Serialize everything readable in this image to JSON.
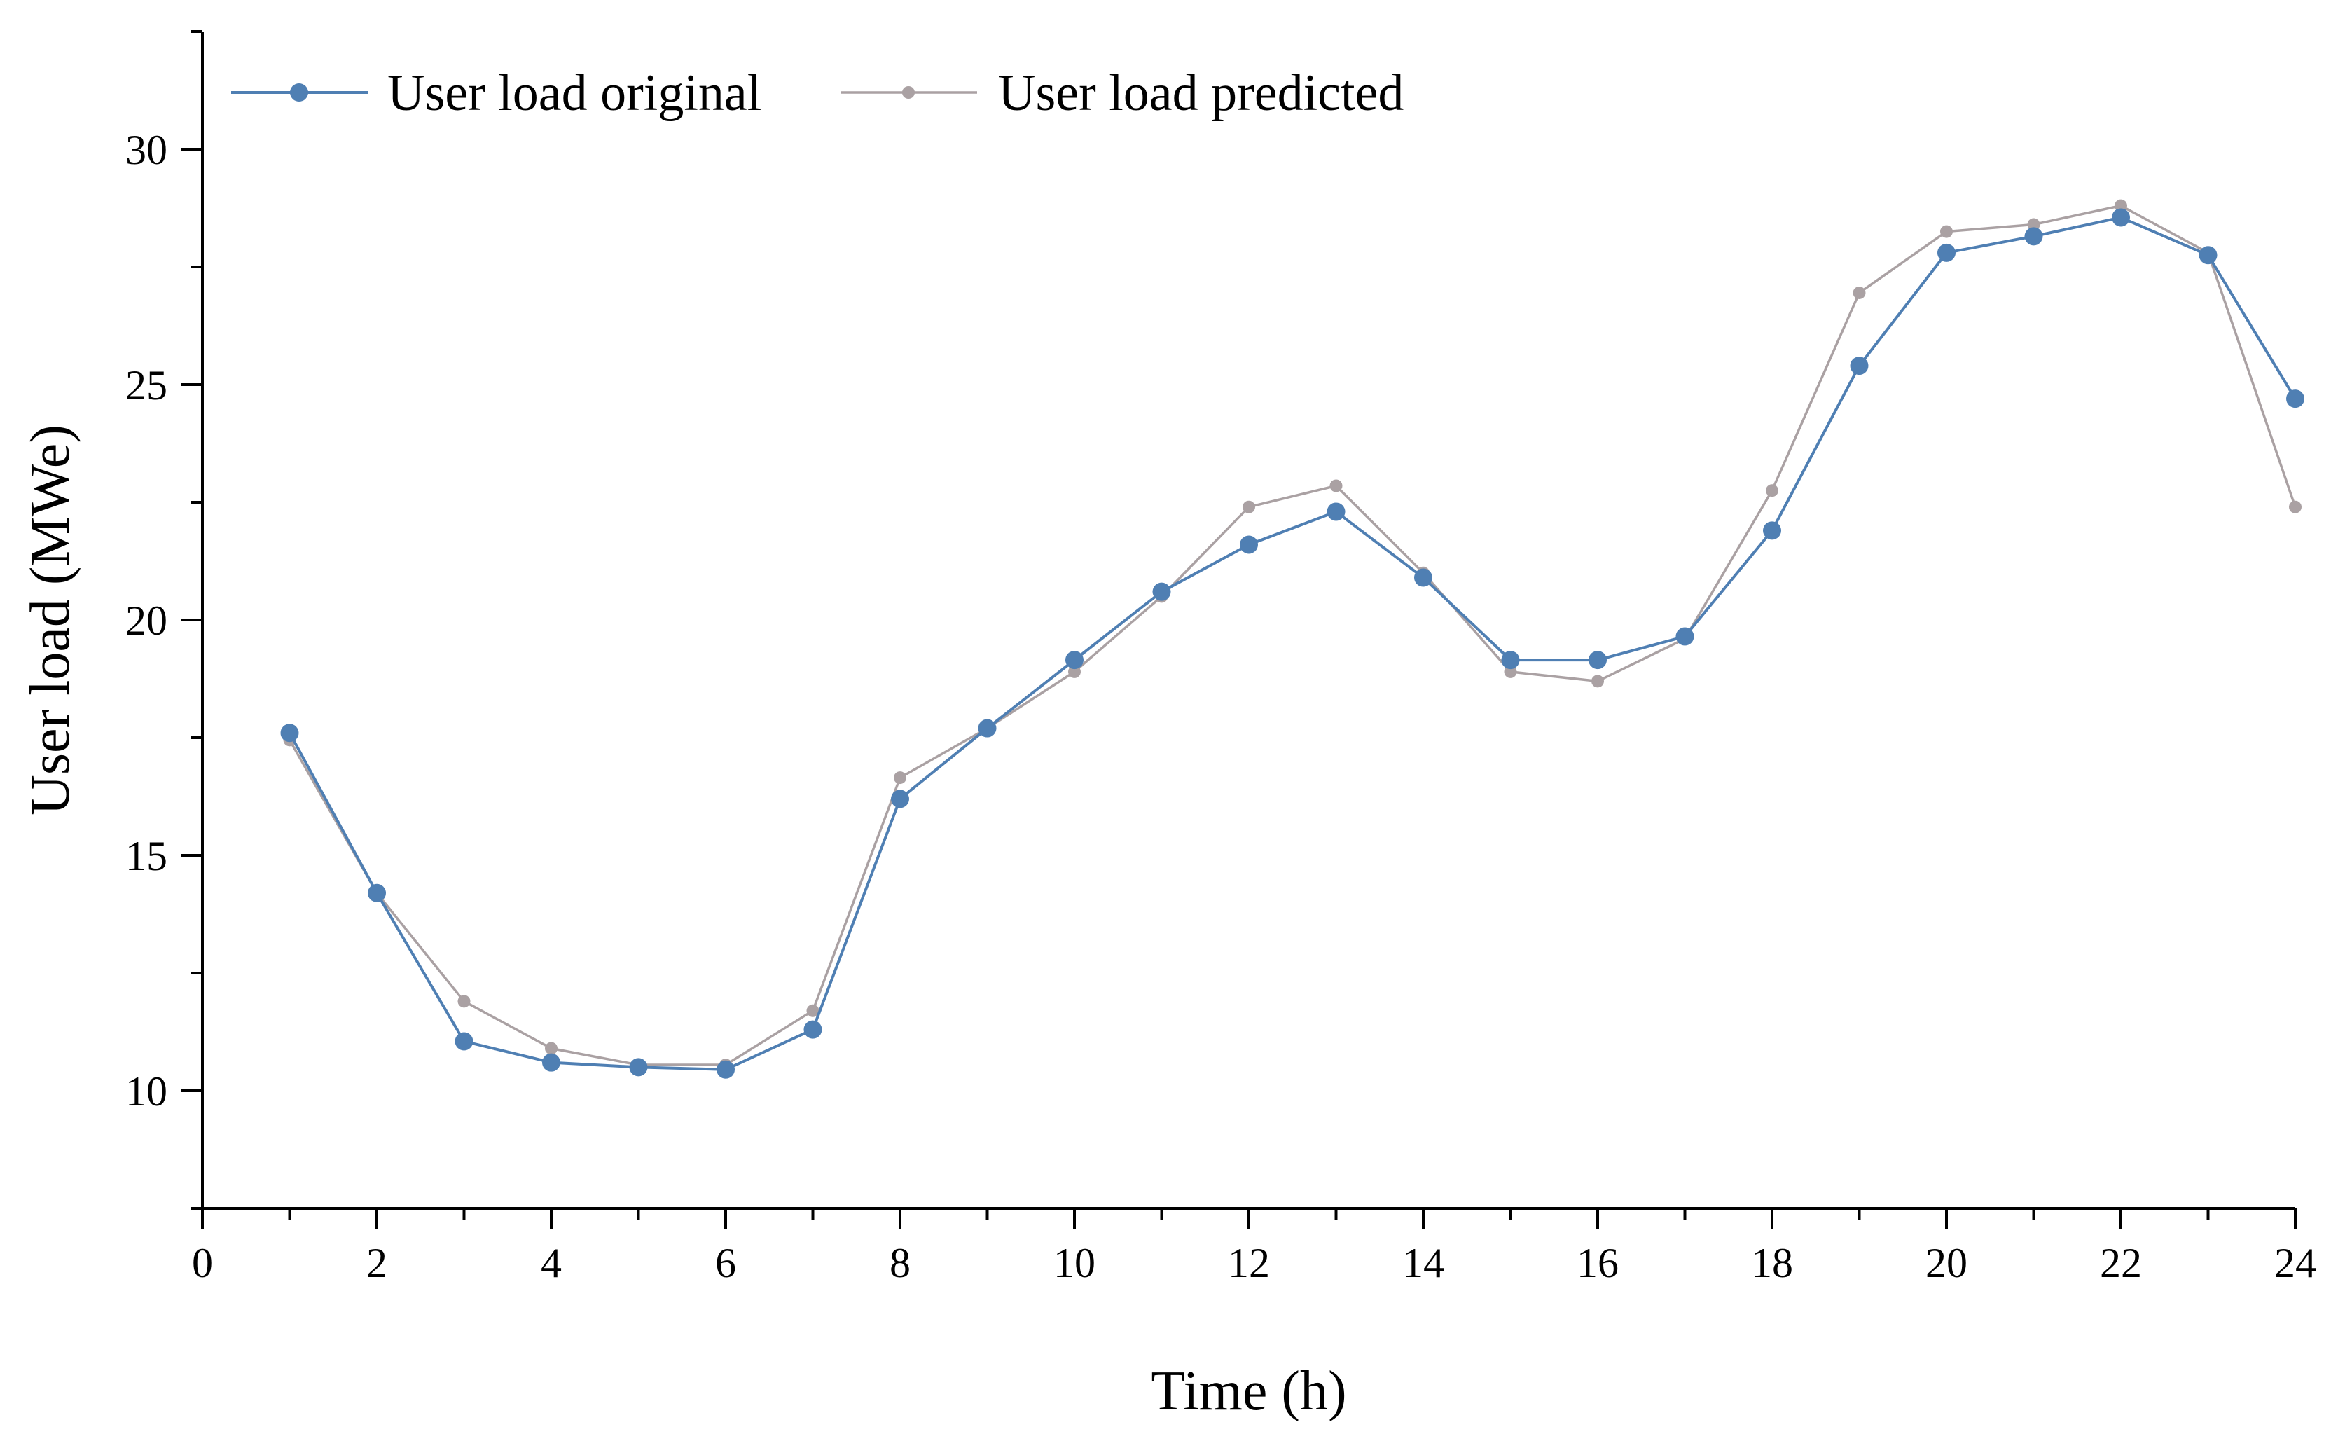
{
  "chart_data": {
    "type": "line",
    "title": "",
    "xlabel": "Time (h)",
    "ylabel": "User load (MWe)",
    "xlim": [
      0,
      24
    ],
    "ylim": [
      7.5,
      32.5
    ],
    "x_ticks": [
      0,
      2,
      4,
      6,
      8,
      10,
      12,
      14,
      16,
      18,
      20,
      22,
      24
    ],
    "x_tick_labels": [
      "0",
      "2",
      "4",
      "6",
      "8",
      "10",
      "12",
      "14",
      "16",
      "18",
      "20",
      "22",
      "24"
    ],
    "y_ticks": [
      10,
      15,
      20,
      25,
      30
    ],
    "y_tick_labels": [
      "10",
      "15",
      "20",
      "25",
      "30"
    ],
    "y_minor_ticks": [
      7.5,
      12.5,
      17.5,
      22.5,
      27.5,
      32.5
    ],
    "grid": false,
    "legend_position": "top-left",
    "x": [
      1,
      2,
      3,
      4,
      5,
      6,
      7,
      8,
      9,
      10,
      11,
      12,
      13,
      14,
      15,
      16,
      17,
      18,
      19,
      20,
      21,
      22,
      23,
      24
    ],
    "series": [
      {
        "name": "User load original",
        "color": "#4f7fb3",
        "marker": "circle-large",
        "values": [
          17.6,
          14.2,
          11.05,
          10.6,
          10.5,
          10.45,
          11.3,
          16.2,
          17.7,
          19.15,
          20.6,
          21.6,
          22.3,
          20.9,
          19.15,
          19.15,
          19.65,
          21.9,
          25.4,
          27.8,
          28.15,
          28.55,
          27.75,
          24.7
        ]
      },
      {
        "name": "User load predicted",
        "color": "#aaa1a3",
        "marker": "circle-small",
        "values": [
          17.45,
          14.2,
          11.9,
          10.9,
          10.55,
          10.55,
          11.7,
          16.65,
          17.7,
          18.9,
          20.5,
          22.4,
          22.85,
          21.0,
          18.9,
          18.7,
          19.6,
          22.75,
          26.95,
          28.25,
          28.4,
          28.8,
          27.8,
          22.4
        ]
      }
    ]
  }
}
